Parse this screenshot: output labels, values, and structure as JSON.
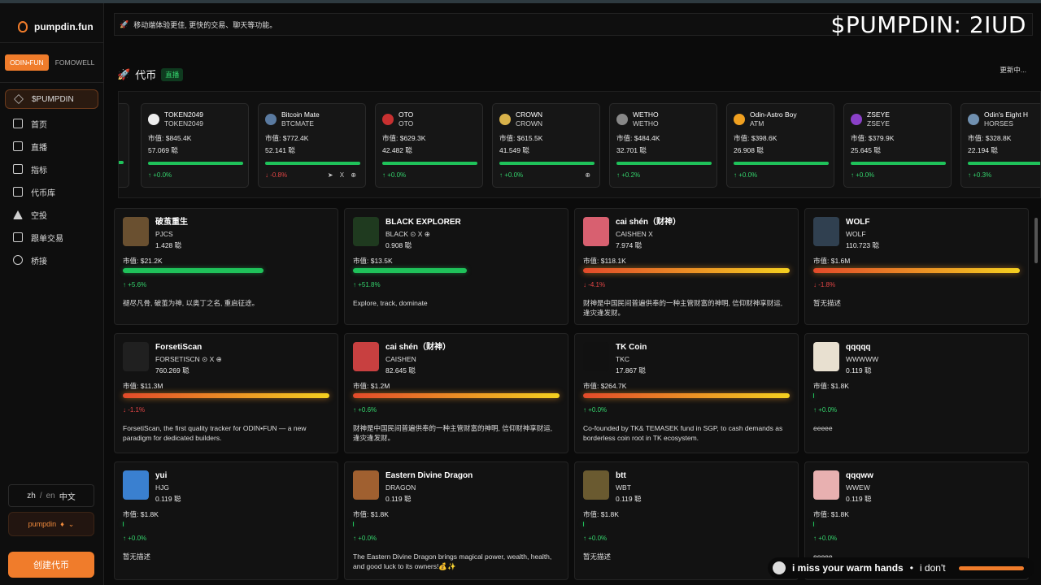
{
  "brand": {
    "name": "pumpdin.fun"
  },
  "platform_tabs": [
    "ODIN•FUN",
    "FOMOWELL"
  ],
  "nav": [
    {
      "label": "$PUMPDIN",
      "icon": "diamond-icon"
    },
    {
      "label": "首页",
      "icon": "home-icon"
    },
    {
      "label": "直播",
      "icon": "video-icon"
    },
    {
      "label": "指标",
      "icon": "chart-icon"
    },
    {
      "label": "代币库",
      "icon": "library-icon"
    },
    {
      "label": "空投",
      "icon": "airdrop-icon"
    },
    {
      "label": "跟单交易",
      "icon": "copy-icon"
    },
    {
      "label": "桥接",
      "icon": "link-icon"
    }
  ],
  "lang": {
    "zh": "zh",
    "sep": "/",
    "en": "en",
    "current": "中文"
  },
  "wallet": {
    "label": "pumpdin",
    "icon_glyph": "♦",
    "arrow": "⌄"
  },
  "create_button": "创建代币",
  "notice": {
    "icon_glyph": "🚀",
    "text": "移动端体验更佳, 更快的交易、聊天等功能。"
  },
  "overlay_title": "$PUMPDIN: 2IUD",
  "section": {
    "icon_glyph": "🚀",
    "title": "代币",
    "badge": "直播",
    "updating": "更新中..."
  },
  "ticker": [
    {
      "name": "TOKEN2049",
      "sym": "TOKEN2049",
      "mcap": "市值: $845.4K",
      "hold": "57.069 聪",
      "chg": "↑ +0.0%",
      "dir": "up",
      "social": "",
      "logo": "#eeeeee"
    },
    {
      "name": "Bitcoin Mate",
      "sym": "BTCMATE",
      "mcap": "市值: $772.4K",
      "hold": "52.141 聪",
      "chg": "↓ -0.8%",
      "dir": "down",
      "social": "➤ X ⊕",
      "logo": "#5a7aa0"
    },
    {
      "name": "OTO",
      "sym": "OTO",
      "mcap": "市值: $629.3K",
      "hold": "42.482 聪",
      "chg": "↑ +0.0%",
      "dir": "up",
      "social": "",
      "logo": "#c83030"
    },
    {
      "name": "CROWN",
      "sym": "CROWN",
      "mcap": "市值: $615.5K",
      "hold": "41.549 聪",
      "chg": "↑ +0.0%",
      "dir": "up",
      "social": "⊕",
      "logo": "#d8b24a"
    },
    {
      "name": "WETHO",
      "sym": "WETHO",
      "mcap": "市值: $484.4K",
      "hold": "32.701 聪",
      "chg": "↑ +0.2%",
      "dir": "up",
      "social": "",
      "logo": "#888888"
    },
    {
      "name": "Odin-Astro Boy",
      "sym": "ATM",
      "mcap": "市值: $398.6K",
      "hold": "26.908 聪",
      "chg": "↑ +0.0%",
      "dir": "up",
      "social": "",
      "logo": "#f0a020"
    },
    {
      "name": "ZSEYE",
      "sym": "ZSEYE",
      "mcap": "市值: $379.9K",
      "hold": "25.645 聪",
      "chg": "↑ +0.0%",
      "dir": "up",
      "social": "",
      "logo": "#8a40c8"
    },
    {
      "name": "Odin's Eight H",
      "sym": "HORSES",
      "mcap": "市值: $328.8K",
      "hold": "22.194 聪",
      "chg": "↑ +0.3%",
      "dir": "up",
      "social": "",
      "logo": "#7090b0"
    }
  ],
  "cards": [
    {
      "name": "破茧重生",
      "sym": "PJCS",
      "hold": "1.428 聪",
      "mcap": "市值: $21.2K",
      "progress": 0.68,
      "bar": "green",
      "chg": "↑ +5.6%",
      "dir": "up",
      "desc": "褪尽凡骨, 破茧为神, 以奥丁之名, 重启征途。",
      "avatar": "#6a5030",
      "social": ""
    },
    {
      "name": "BLACK EXPLORER",
      "sym": "BLACK",
      "hold": "0.908 聪",
      "mcap": "市值: $13.5K",
      "progress": 0.55,
      "bar": "green",
      "chg": "↑ +51.8%",
      "dir": "up",
      "desc": "Explore, track, dominate",
      "avatar": "#1f3a1f",
      "social": "⊙ X ⊕"
    },
    {
      "name": "cai shén（财神）",
      "sym": "CAISHEN",
      "hold": "7.974 聪",
      "mcap": "市值: $118.1K",
      "progress": 1.0,
      "bar": "orange",
      "chg": "↓ -4.1%",
      "dir": "down",
      "desc": "财神是中国民间普遍供奉的一种主管财富的神明, 信仰财神享财运, 逢灾逢发财。",
      "avatar": "#d86070",
      "social": "X"
    },
    {
      "name": "WOLF",
      "sym": "WOLF",
      "hold": "110.723 聪",
      "mcap": "市值: $1.6M",
      "progress": 1.0,
      "bar": "orange",
      "chg": "↓ -1.8%",
      "dir": "down",
      "desc": "暂无描述",
      "avatar": "#304050",
      "social": ""
    },
    {
      "name": "ForsetiScan",
      "sym": "FORSETISCN",
      "hold": "760.269 聪",
      "mcap": "市值: $11.3M",
      "progress": 1.0,
      "bar": "orange",
      "chg": "↓ -1.1%",
      "dir": "down",
      "desc": "ForsetiScan, the first quality tracker for ODIN•FUN — a new paradigm for dedicated builders.",
      "avatar": "#202020",
      "social": "⊙ X ⊕"
    },
    {
      "name": "cai shén（财神）",
      "sym": "CAISHEN",
      "hold": "82.645 聪",
      "mcap": "市值: $1.2M",
      "progress": 1.0,
      "bar": "orange",
      "chg": "↑ +0.6%",
      "dir": "up",
      "desc": "财神是中国民间普遍供奉的一种主管财富的神明, 信仰财神享财运, 逢灾逢发财。",
      "avatar": "#c84040",
      "social": ""
    },
    {
      "name": "TK Coin",
      "sym": "TKC",
      "hold": "17.867 聪",
      "mcap": "市值: $264.7K",
      "progress": 1.0,
      "bar": "orange",
      "chg": "↑ +0.0%",
      "dir": "up",
      "desc": "Co-founded by TK& TEMASEK fund in SGP, to cash demands as borderless coin root in TK ecosystem.",
      "avatar": "#111111",
      "social": ""
    },
    {
      "name": "qqqqq",
      "sym": "WWWWW",
      "hold": "0.119 聪",
      "mcap": "市值: $1.8K",
      "progress": 0.005,
      "bar": "green",
      "chg": "↑ +0.0%",
      "dir": "up",
      "desc": "eeeee",
      "avatar": "#e8e0d0",
      "social": ""
    },
    {
      "name": "yui",
      "sym": "HJG",
      "hold": "0.119 聪",
      "mcap": "市值: $1.8K",
      "progress": 0.005,
      "bar": "green",
      "chg": "↑ +0.0%",
      "dir": "up",
      "desc": "暂无描述",
      "avatar": "#3a80d0",
      "social": ""
    },
    {
      "name": "Eastern Divine Dragon",
      "sym": "DRAGON",
      "hold": "0.119 聪",
      "mcap": "市值: $1.8K",
      "progress": 0.005,
      "bar": "green",
      "chg": "↑ +0.0%",
      "dir": "up",
      "desc": "The Eastern Divine Dragon brings magical power, wealth, health, and good luck to its owners!💰✨",
      "avatar": "#a06030",
      "social": ""
    },
    {
      "name": "btt",
      "sym": "WBT",
      "hold": "0.119 聪",
      "mcap": "市值: $1.8K",
      "progress": 0.005,
      "bar": "green",
      "chg": "↑ +0.0%",
      "dir": "up",
      "desc": "暂无描述",
      "avatar": "#6a5a30",
      "social": ""
    },
    {
      "name": "qqqww",
      "sym": "WWEW",
      "hold": "0.119 聪",
      "mcap": "市值: $1.8K",
      "progress": 0.005,
      "bar": "green",
      "chg": "↑ +0.0%",
      "dir": "up",
      "desc": "eeeee",
      "avatar": "#e8b0b0",
      "social": ""
    }
  ],
  "music": {
    "track": "i miss your warm hands",
    "dot": "•",
    "next": "i don't"
  }
}
